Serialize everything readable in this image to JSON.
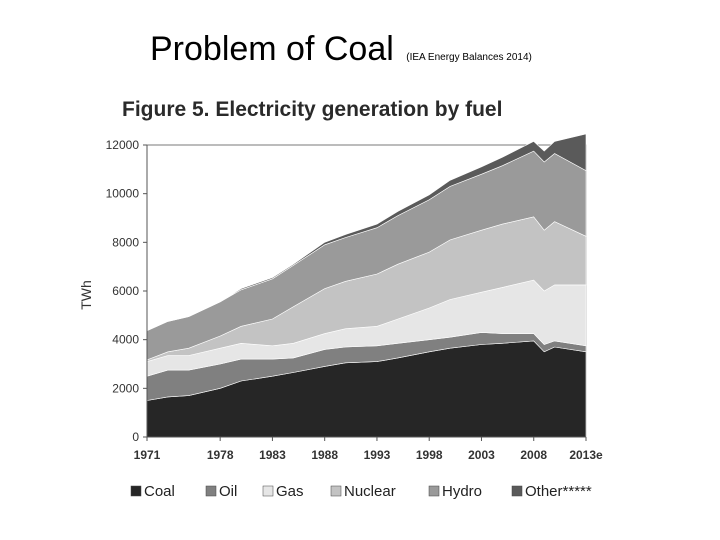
{
  "slide": {
    "title": "Problem of Coal",
    "source_note": "(IEA Energy Balances 2014)"
  },
  "chart_data": {
    "type": "area",
    "stacked": true,
    "title": "Figure 5. Electricity generation by fuel",
    "xlabel": "",
    "ylabel": "TWh",
    "ylim": [
      0,
      12000
    ],
    "xlim": [
      1971,
      2013
    ],
    "yticks": [
      0,
      2000,
      4000,
      6000,
      8000,
      10000,
      12000
    ],
    "xtick_values": [
      1971,
      1978,
      1983,
      1988,
      1993,
      1998,
      2003,
      2008,
      2013
    ],
    "xtick_labels": [
      "1971",
      "1978",
      "1983",
      "1988",
      "1993",
      "1998",
      "2003",
      "2008",
      "2013e"
    ],
    "grid": false,
    "legend_position": "bottom",
    "x": [
      1971,
      1973,
      1975,
      1978,
      1980,
      1983,
      1985,
      1988,
      1990,
      1993,
      1995,
      1998,
      2000,
      2003,
      2005,
      2008,
      2009,
      2010,
      2013
    ],
    "series": [
      {
        "name": "Coal",
        "color": "#262626",
        "values": [
          1500,
          1650,
          1700,
          2000,
          2300,
          2500,
          2650,
          2900,
          3050,
          3100,
          3250,
          3500,
          3650,
          3800,
          3850,
          3950,
          3500,
          3700,
          3500
        ]
      },
      {
        "name": "Oil",
        "color": "#808080",
        "values": [
          1000,
          1100,
          1050,
          1000,
          900,
          700,
          600,
          700,
          650,
          650,
          600,
          500,
          450,
          500,
          400,
          300,
          300,
          250,
          250
        ]
      },
      {
        "name": "Gas",
        "color": "#e6e6e6",
        "values": [
          600,
          600,
          600,
          650,
          650,
          550,
          600,
          650,
          750,
          800,
          1000,
          1300,
          1550,
          1650,
          1900,
          2200,
          2200,
          2300,
          2500
        ]
      },
      {
        "name": "Nuclear",
        "color": "#c3c3c3",
        "values": [
          70,
          150,
          300,
          500,
          700,
          1100,
          1500,
          1850,
          1950,
          2150,
          2250,
          2300,
          2450,
          2550,
          2600,
          2600,
          2500,
          2600,
          2000
        ]
      },
      {
        "name": "Hydro",
        "color": "#9a9a9a",
        "values": [
          1200,
          1250,
          1300,
          1400,
          1500,
          1650,
          1700,
          1800,
          1800,
          1900,
          2000,
          2150,
          2200,
          2300,
          2400,
          2700,
          2800,
          2800,
          2700
        ]
      },
      {
        "name": "Other*****",
        "color": "#5a5a5a",
        "values": [
          0,
          0,
          0,
          0,
          50,
          50,
          50,
          100,
          120,
          150,
          170,
          200,
          250,
          300,
          350,
          400,
          450,
          500,
          1500
        ]
      }
    ]
  }
}
